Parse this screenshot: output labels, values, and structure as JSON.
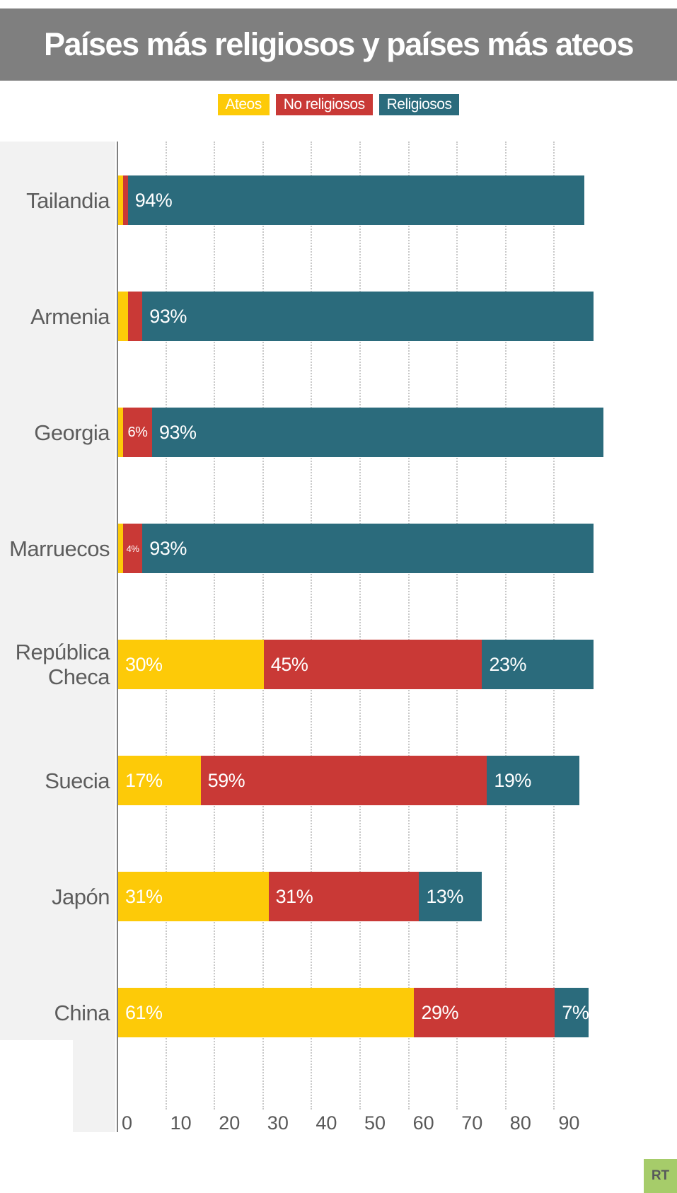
{
  "title": "Países más religiosos y países más ateos",
  "legend": [
    {
      "label": "Ateos",
      "color": "#FDCA08"
    },
    {
      "label": "No religiosos",
      "color": "#C93936"
    },
    {
      "label": "Religiosos",
      "color": "#2B6B7C"
    }
  ],
  "logo": {
    "text": "RT",
    "bg": "#A6CC6A",
    "fg": "#56575B"
  },
  "colors": {
    "banner_bg": "#7F7F7F",
    "label_column_bg": "#F2F2F2",
    "axis_line": "#7F7F7F",
    "gridline": "#C8C8C8",
    "country_label_text": "#5D5D5D",
    "tick_text": "#595959",
    "bar_label_text": "#FFFFFF"
  },
  "chart_data": {
    "type": "bar",
    "orientation": "horizontal",
    "stacked": true,
    "grid": "vertical dotted gridlines every 10 units from 10 to 90",
    "legend_position": "top-center",
    "xlim": [
      0,
      100
    ],
    "x_ticks": [
      0,
      10,
      20,
      30,
      40,
      50,
      60,
      70,
      80,
      90
    ],
    "categories": [
      "Tailandia",
      "Armenia",
      "Georgia",
      "Marruecos",
      "República Checa",
      "Suecia",
      "Japón",
      "China"
    ],
    "series": [
      {
        "name": "Ateos",
        "color": "#FDCA08",
        "values": [
          1,
          2,
          1,
          1,
          30,
          17,
          31,
          61
        ],
        "labels": [
          "",
          "",
          "",
          "",
          "30%",
          "17%",
          "31%",
          "61%"
        ]
      },
      {
        "name": "No religiosos",
        "color": "#C93936",
        "values": [
          1,
          3,
          6,
          4,
          45,
          59,
          31,
          29
        ],
        "labels": [
          "",
          "",
          "6%",
          "4%",
          "45%",
          "59%",
          "31%",
          "29%"
        ]
      },
      {
        "name": "Religiosos",
        "color": "#2B6B7C",
        "values": [
          94,
          93,
          93,
          93,
          23,
          19,
          13,
          7
        ],
        "labels": [
          "94%",
          "93%",
          "93%",
          "93%",
          "23%",
          "19%",
          "13%",
          "7%"
        ]
      }
    ]
  }
}
